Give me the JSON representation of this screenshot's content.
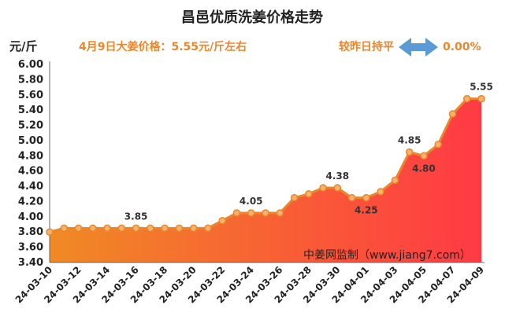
{
  "chart_data": {
    "type": "area",
    "title": "昌邑优质洗姜价格走势",
    "ylabel": "元/斤",
    "ylim": [
      3.4,
      6.0
    ],
    "yticks": [
      "3.40",
      "3.60",
      "3.80",
      "4.00",
      "4.20",
      "4.40",
      "4.60",
      "4.80",
      "5.00",
      "5.20",
      "5.40",
      "5.60",
      "5.80",
      "6.00"
    ],
    "x": [
      "24-03-10",
      "24-03-11",
      "24-03-12",
      "24-03-13",
      "24-03-14",
      "24-03-15",
      "24-03-16",
      "24-03-17",
      "24-03-18",
      "24-03-19",
      "24-03-20",
      "24-03-21",
      "24-03-22",
      "24-03-23",
      "24-03-24",
      "24-03-25",
      "24-03-26",
      "24-03-27",
      "24-03-28",
      "24-03-29",
      "24-03-30",
      "24-03-31",
      "24-04-01",
      "24-04-02",
      "24-04-03",
      "24-04-04",
      "24-04-05",
      "24-04-06",
      "24-04-07",
      "24-04-08",
      "24-04-09"
    ],
    "xtick_labels": [
      "24-03-10",
      "24-03-12",
      "24-03-14",
      "24-03-16",
      "24-03-18",
      "24-03-20",
      "24-03-22",
      "24-03-24",
      "24-03-26",
      "24-03-28",
      "24-03-30",
      "24-04-01",
      "24-04-03",
      "24-04-05",
      "24-04-07",
      "24-04-09"
    ],
    "values": [
      3.8,
      3.85,
      3.85,
      3.85,
      3.85,
      3.85,
      3.85,
      3.85,
      3.85,
      3.85,
      3.85,
      3.85,
      3.95,
      4.05,
      4.05,
      4.05,
      4.05,
      4.25,
      4.3,
      4.38,
      4.38,
      4.25,
      4.25,
      4.33,
      4.48,
      4.85,
      4.8,
      4.95,
      5.35,
      5.55,
      5.55
    ],
    "data_labels": [
      {
        "index": 6,
        "text": "3.85"
      },
      {
        "index": 14,
        "text": "4.05"
      },
      {
        "index": 20,
        "text": "4.38"
      },
      {
        "index": 22,
        "text": "4.25"
      },
      {
        "index": 25,
        "text": "4.85"
      },
      {
        "index": 26,
        "text": "4.80"
      },
      {
        "index": 30,
        "text": "5.55"
      }
    ],
    "headline": "4月9日大姜价格：5.55元/斤左右",
    "change_text": "较昨日持平",
    "change_value": "0.00%",
    "source": "中姜网监制（www.jiang7.com）",
    "grid": false,
    "colors": {
      "line": "#e8872c",
      "marker_fill": "#f6b26b",
      "area_top": "#ff3a44",
      "area_bottom": "#f08a24",
      "arrow": "#5b9bd5",
      "headline": "#e8872c"
    }
  }
}
